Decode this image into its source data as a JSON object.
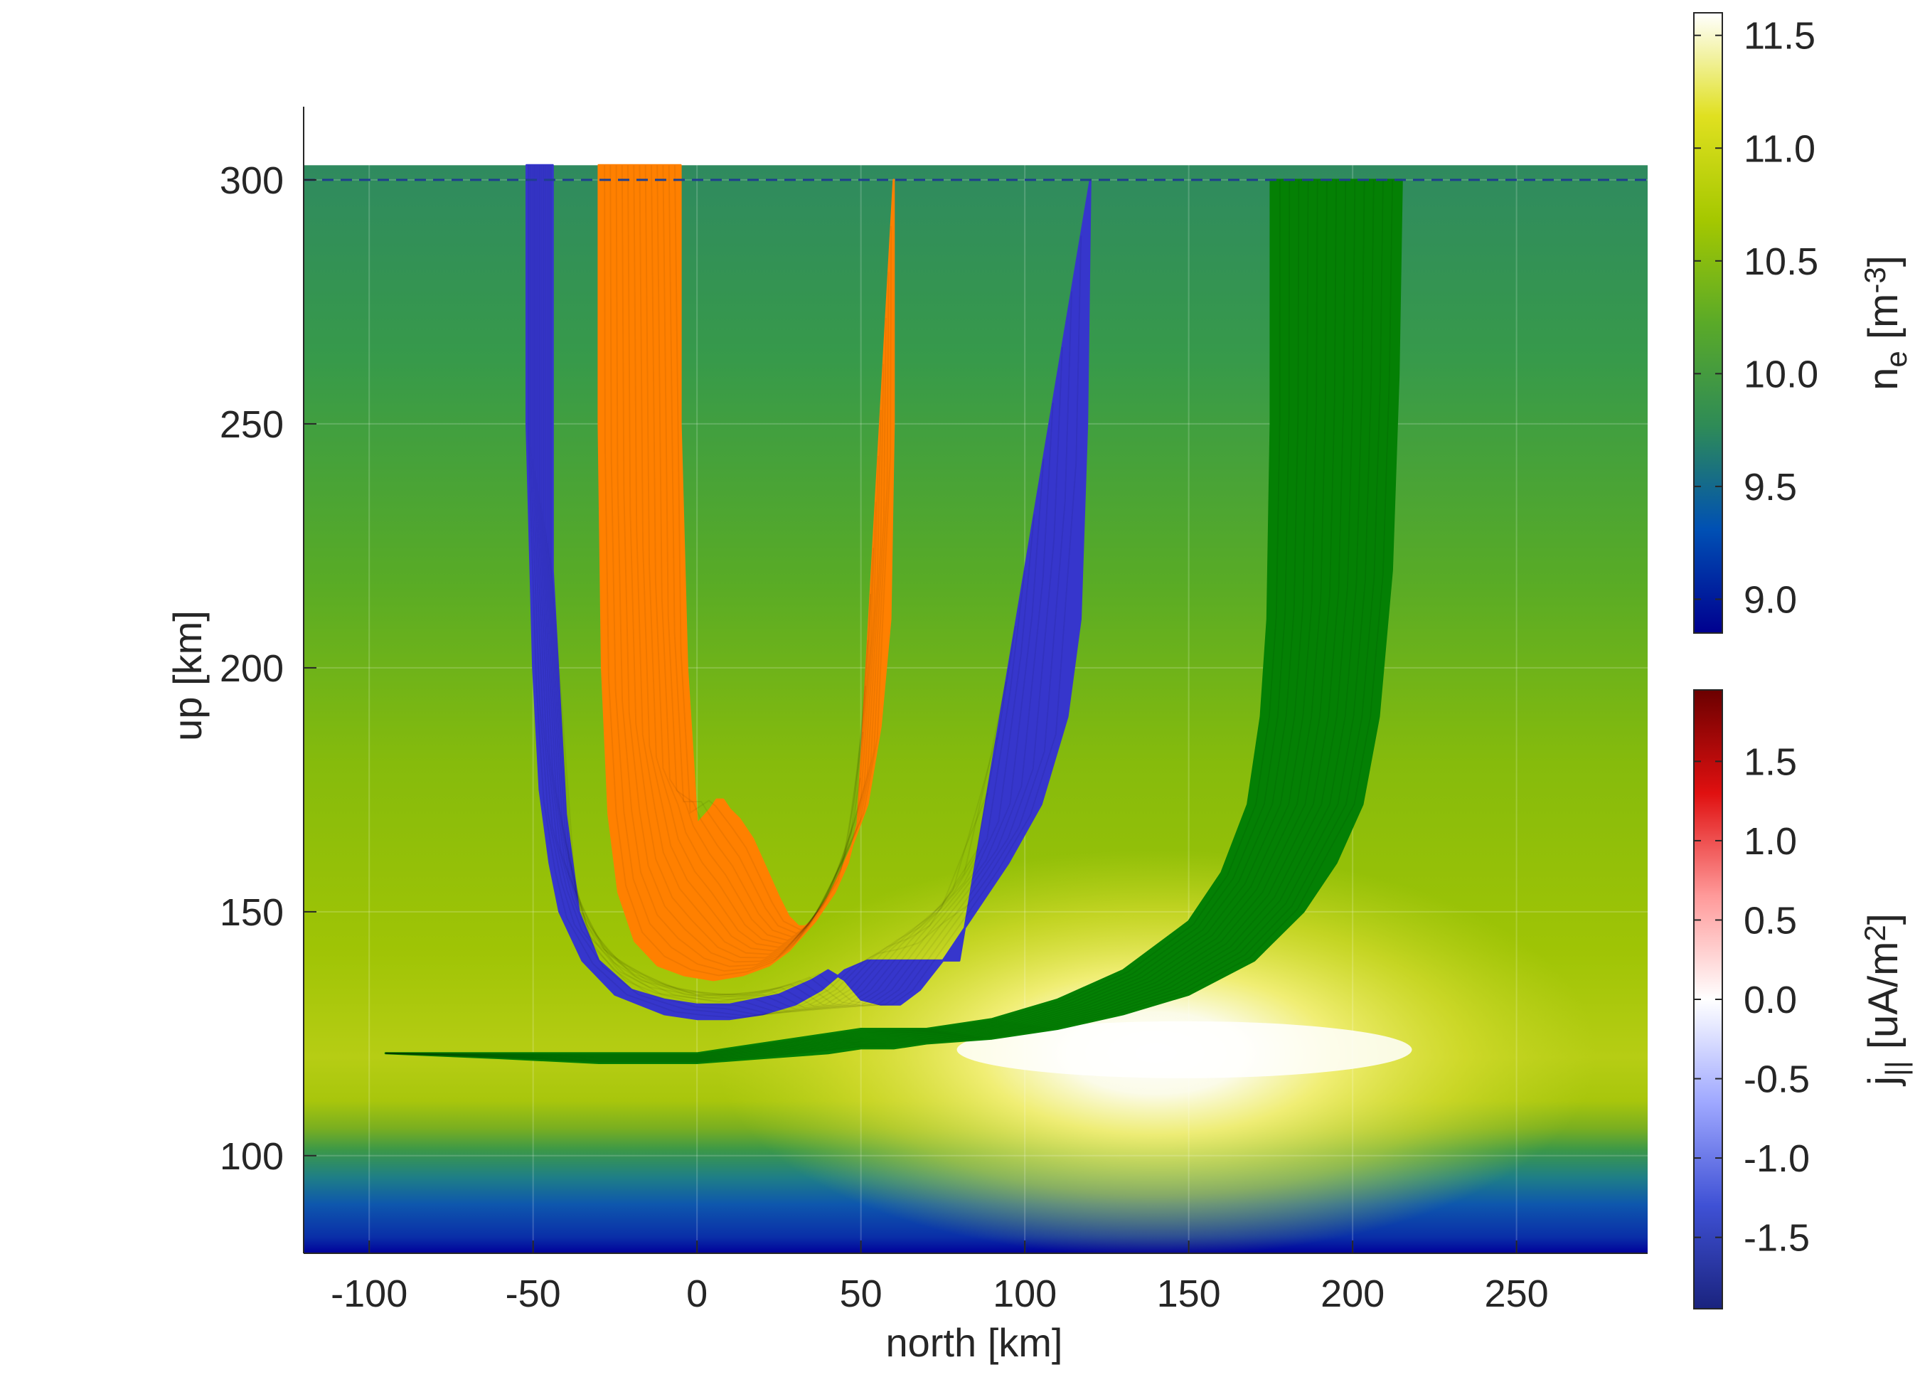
{
  "chart_data": {
    "type": "heatmap",
    "xlabel": "north [km]",
    "ylabel": "up [km]",
    "xlim": [
      -120,
      290
    ],
    "ylim": [
      80,
      315
    ],
    "xticks": [
      -100,
      -50,
      0,
      50,
      100,
      150,
      200,
      250
    ],
    "yticks": [
      100,
      150,
      200,
      250,
      300
    ],
    "xtick_labels": [
      "-100",
      "-50",
      "0",
      "50",
      "100",
      "150",
      "200",
      "250"
    ],
    "ytick_labels": [
      "100",
      "150",
      "200",
      "250",
      "300"
    ],
    "grid": true,
    "reference_line": {
      "up_km": 300,
      "style": "dashed",
      "color": "#1f3f8f"
    },
    "density_field": {
      "variable": "log10 n_e",
      "x_extent": [
        -120,
        290
      ],
      "y_extent": [
        80,
        303
      ],
      "background_level": 10.0,
      "peak": {
        "north_km": 140,
        "up_km": 121,
        "level": 11.5
      }
    },
    "colorbar_ne": {
      "label_base": "n",
      "label_sub": "e",
      "label_unit_pre": " [m",
      "label_unit_sup": "-3",
      "label_unit_post": "]",
      "range": [
        8.85,
        11.6
      ],
      "ticks": [
        9.0,
        9.5,
        10.0,
        10.5,
        11.0,
        11.5
      ],
      "tick_labels": [
        "9.0",
        "9.5",
        "10.0",
        "10.5",
        "11.0",
        "11.5"
      ],
      "colors": [
        "#00008f",
        "#0050b4",
        "#2e8b57",
        "#5aaa28",
        "#a5c800",
        "#e0e020",
        "#ffffff"
      ]
    },
    "colorbar_j": {
      "label_base": "j",
      "label_sub": "||",
      "label_unit_pre": " [uA/m",
      "label_unit_sup": "2",
      "label_unit_post": "]",
      "range": [
        -1.95,
        1.95
      ],
      "ticks": [
        -1.5,
        -1.0,
        -0.5,
        0.0,
        0.5,
        1.0,
        1.5
      ],
      "tick_labels": [
        "-1.5",
        "-1.0",
        "-0.5",
        "0.0",
        "0.5",
        "1.0",
        "1.5"
      ],
      "colors": [
        "#1a237e",
        "#3f51d5",
        "#9fa8ff",
        "#ffffff",
        "#ff9a9a",
        "#e01010",
        "#6b0000"
      ]
    },
    "series": [
      {
        "color": "#3636cc",
        "x_left": [
          -52,
          -52,
          -50,
          -48,
          -45,
          -42,
          -35,
          -25,
          -10,
          0,
          10,
          20,
          30,
          38,
          45,
          52,
          58,
          64,
          72,
          80
        ],
        "y_left": [
          303,
          250,
          200,
          175,
          160,
          150,
          140,
          133,
          129,
          128,
          128,
          129,
          131,
          134,
          138,
          140,
          140,
          140,
          140,
          140
        ],
        "x_right": [
          120,
          119,
          117,
          113,
          105,
          95,
          85,
          75,
          68,
          62,
          56,
          50,
          45,
          40,
          35,
          25,
          10,
          0,
          -10,
          -20,
          -30,
          -36,
          -40,
          -44,
          -44
        ],
        "y_right": [
          300,
          250,
          210,
          190,
          172,
          160,
          150,
          140,
          134,
          131,
          131,
          132,
          136,
          138,
          136,
          133,
          131,
          131,
          132,
          134,
          140,
          150,
          170,
          220,
          303
        ]
      },
      {
        "color": "#ff8000",
        "x_left": [
          -30,
          -30,
          -29,
          -27,
          -24,
          -19,
          -12,
          -4,
          5,
          14,
          22,
          28,
          32,
          36,
          42,
          46,
          49
        ],
        "y_left": [
          303,
          250,
          200,
          170,
          154,
          144,
          139,
          137,
          136,
          137,
          139,
          142,
          145,
          148,
          154,
          160,
          168
        ],
        "x_right": [
          60,
          60,
          59,
          56,
          52,
          47,
          43,
          40,
          37,
          35,
          33,
          31,
          28,
          25,
          21,
          17,
          13,
          10,
          8,
          6,
          4,
          0,
          -3,
          -5,
          -5
        ],
        "y_right": [
          300,
          250,
          210,
          188,
          172,
          163,
          157,
          153,
          150,
          148,
          147,
          147,
          149,
          153,
          159,
          165,
          169,
          171,
          173,
          173,
          171,
          168,
          200,
          250,
          303
        ]
      },
      {
        "color": "#048004",
        "x_left": [
          175,
          175,
          174,
          172,
          168,
          160,
          150,
          130,
          110,
          90,
          70,
          60,
          50,
          40,
          20,
          0,
          -30,
          -60,
          -95
        ],
        "y_left": [
          300,
          250,
          210,
          190,
          172,
          158,
          148,
          138,
          132,
          128,
          126,
          126,
          126,
          125,
          123,
          121,
          121,
          121,
          121
        ],
        "x_right": [
          -95,
          -60,
          -30,
          0,
          20,
          40,
          50,
          60,
          70,
          90,
          110,
          130,
          150,
          170,
          185,
          195,
          203,
          208,
          212,
          214,
          215
        ],
        "y_right": [
          121,
          120,
          119,
          119,
          120,
          121,
          122,
          122,
          123,
          124,
          126,
          129,
          133,
          140,
          150,
          160,
          172,
          190,
          220,
          260,
          300
        ]
      }
    ]
  }
}
